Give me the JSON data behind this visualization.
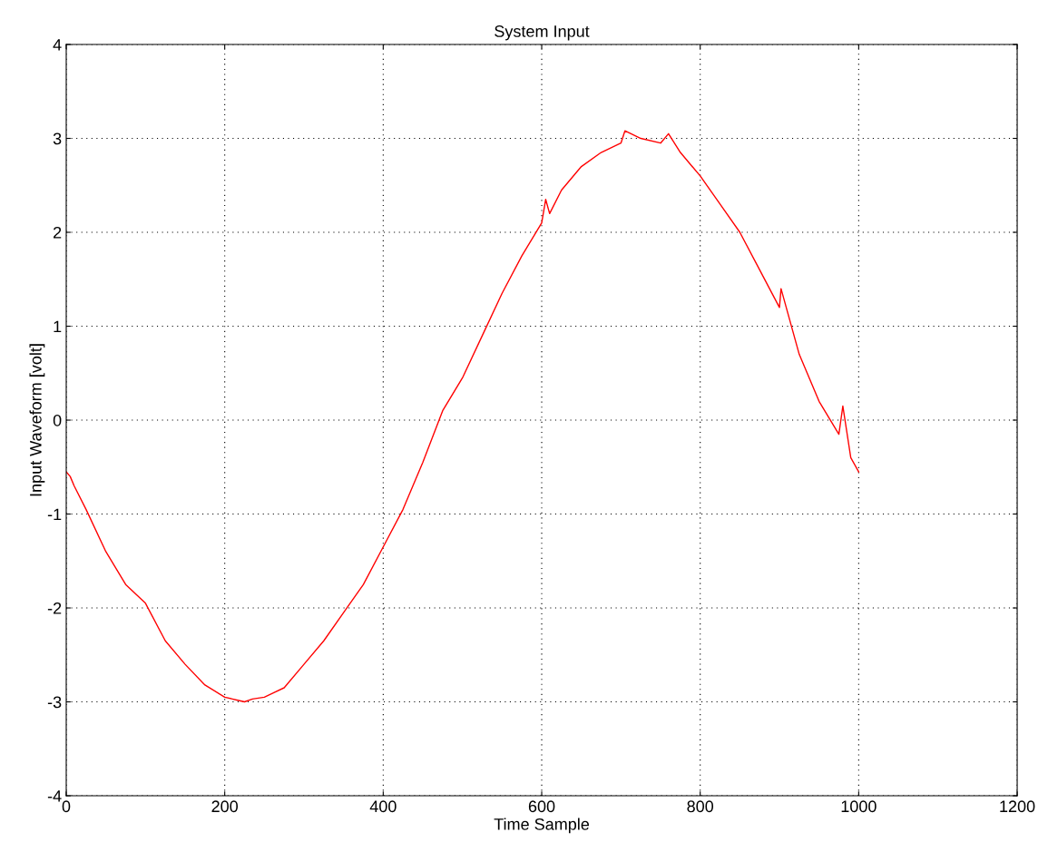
{
  "chart_data": {
    "type": "line",
    "title": "System Input",
    "xlabel": "Time Sample",
    "ylabel": "Input Waveform [volt]",
    "xlim": [
      0,
      1200
    ],
    "ylim": [
      -4,
      4
    ],
    "xticks": [
      0,
      200,
      400,
      600,
      800,
      1000,
      1200
    ],
    "yticks": [
      -4,
      -3,
      -2,
      -1,
      0,
      1,
      2,
      3,
      4
    ],
    "grid": true,
    "marker": "none",
    "line_style": "solid",
    "series": [
      {
        "color": "#ff0000",
        "x": [
          0,
          5,
          10,
          25,
          50,
          75,
          100,
          125,
          150,
          175,
          200,
          215,
          225,
          235,
          250,
          275,
          300,
          325,
          350,
          375,
          400,
          425,
          450,
          475,
          500,
          525,
          550,
          575,
          600,
          605,
          610,
          625,
          650,
          675,
          700,
          705,
          725,
          750,
          760,
          775,
          800,
          825,
          850,
          875,
          900,
          902,
          925,
          950,
          975,
          980,
          990,
          1000
        ],
        "values": [
          -0.55,
          -0.6,
          -0.7,
          -0.95,
          -1.4,
          -1.75,
          -1.95,
          -2.35,
          -2.6,
          -2.82,
          -2.95,
          -2.98,
          -3.0,
          -2.97,
          -2.95,
          -2.85,
          -2.6,
          -2.35,
          -2.05,
          -1.75,
          -1.35,
          -0.95,
          -0.45,
          0.1,
          0.45,
          0.9,
          1.35,
          1.75,
          2.1,
          2.35,
          2.2,
          2.45,
          2.7,
          2.85,
          2.95,
          3.08,
          3.0,
          2.95,
          3.05,
          2.85,
          2.6,
          2.3,
          2.0,
          1.6,
          1.2,
          1.4,
          0.7,
          0.2,
          -0.15,
          0.15,
          -0.4,
          -0.55
        ]
      }
    ]
  }
}
